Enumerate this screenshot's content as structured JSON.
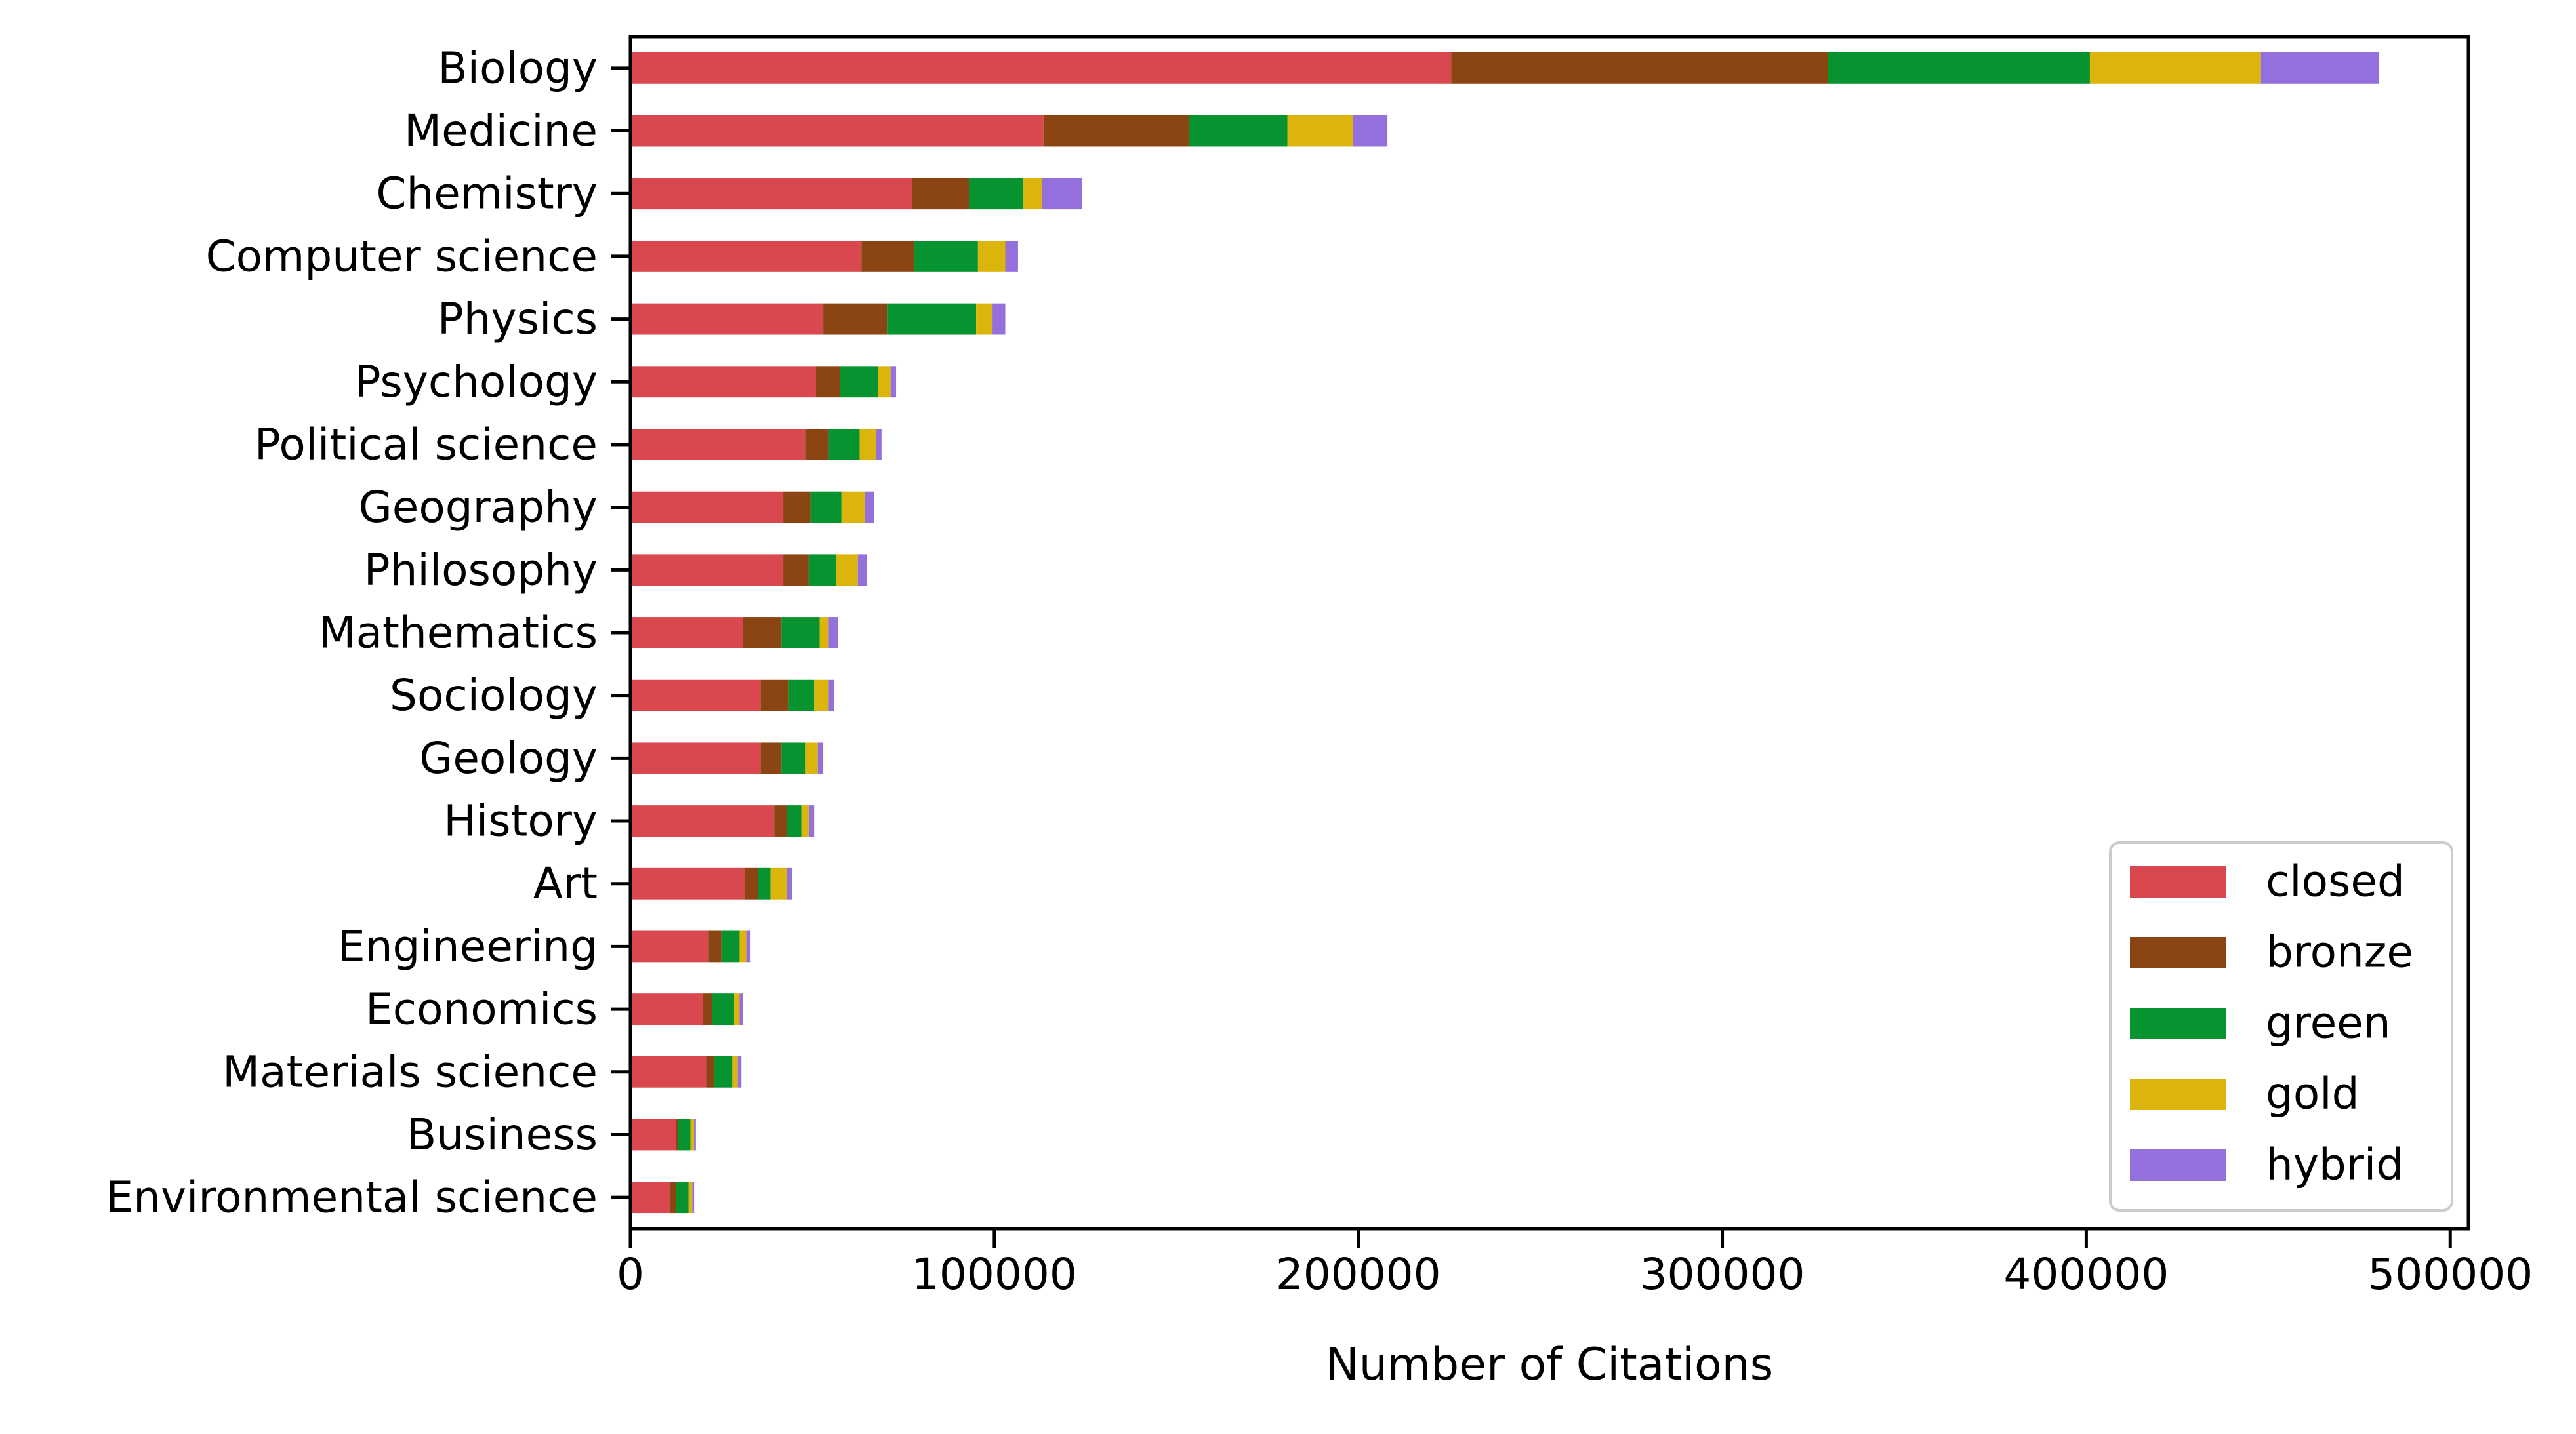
{
  "chart_data": {
    "type": "bar",
    "orientation": "horizontal",
    "stacked": true,
    "title": "",
    "xlabel": "Number of Citations",
    "ylabel": "",
    "xlim": [
      0,
      505000
    ],
    "xticks": [
      0,
      100000,
      200000,
      300000,
      400000,
      500000
    ],
    "xtick_labels": [
      "0",
      "100000",
      "200000",
      "300000",
      "400000",
      "500000"
    ],
    "grid": false,
    "legend_position": "lower-right",
    "categories": [
      "Biology",
      "Medicine",
      "Chemistry",
      "Computer science",
      "Physics",
      "Psychology",
      "Political science",
      "Geography",
      "Philosophy",
      "Mathematics",
      "Sociology",
      "Geology",
      "History",
      "Art",
      "Engineering",
      "Economics",
      "Materials science",
      "Business",
      "Environmental science"
    ],
    "series": [
      {
        "name": "closed",
        "color": "#d9484f",
        "values": [
          225500,
          113500,
          77500,
          63500,
          53000,
          51000,
          48000,
          42000,
          42000,
          31000,
          35800,
          35800,
          39500,
          31500,
          21500,
          20000,
          21000,
          12500,
          11000
        ]
      },
      {
        "name": "bronze",
        "color": "#8b4513",
        "values": [
          103500,
          40000,
          15500,
          14500,
          17500,
          6500,
          6500,
          7500,
          7000,
          10500,
          7700,
          5700,
          3500,
          3500,
          3500,
          2500,
          2000,
          500,
          1500
        ]
      },
      {
        "name": "green",
        "color": "#069330",
        "values": [
          72000,
          27000,
          15000,
          17500,
          24500,
          10500,
          8500,
          8500,
          7500,
          10500,
          7000,
          6500,
          4000,
          3500,
          5000,
          6000,
          5000,
          3500,
          3500
        ]
      },
      {
        "name": "gold",
        "color": "#dbb50c",
        "values": [
          47000,
          18000,
          5000,
          7500,
          4500,
          3500,
          4500,
          6500,
          6000,
          2500,
          4000,
          3500,
          2000,
          4500,
          2000,
          1500,
          1500,
          1000,
          1000
        ]
      },
      {
        "name": "hybrid",
        "color": "#9370db",
        "values": [
          32500,
          9500,
          11000,
          3500,
          3500,
          1500,
          1500,
          2500,
          2500,
          2500,
          1500,
          1500,
          1500,
          1500,
          1000,
          1000,
          1000,
          500,
          500
        ]
      }
    ]
  }
}
